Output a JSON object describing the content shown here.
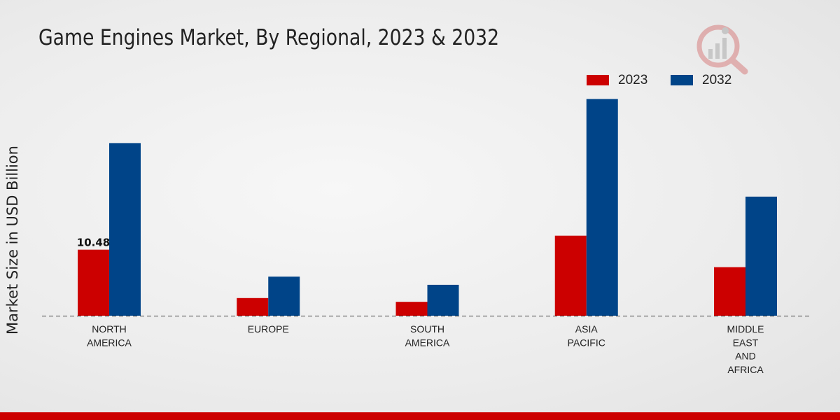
{
  "chart_data": {
    "type": "bar",
    "title": "Game Engines Market, By Regional, 2023 & 2032",
    "xlabel": "",
    "ylabel": "Market Size in USD Billion",
    "categories": [
      [
        "NORTH",
        "AMERICA"
      ],
      [
        "EUROPE"
      ],
      [
        "SOUTH",
        "AMERICA"
      ],
      [
        "ASIA",
        "PACIFIC"
      ],
      [
        "MIDDLE",
        "EAST",
        "AND",
        "AFRICA"
      ]
    ],
    "series": [
      {
        "name": "2023",
        "color": "#cc0000",
        "values": [
          10.48,
          2.8,
          2.2,
          12.7,
          7.7
        ]
      },
      {
        "name": "2032",
        "color": "#004488",
        "values": [
          27.4,
          6.2,
          4.9,
          34.4,
          18.9
        ]
      }
    ],
    "data_labels": [
      {
        "series": 0,
        "index": 0,
        "text": "10.48"
      }
    ],
    "ylim": [
      0,
      40
    ],
    "grid": false,
    "legend": "top-right"
  }
}
